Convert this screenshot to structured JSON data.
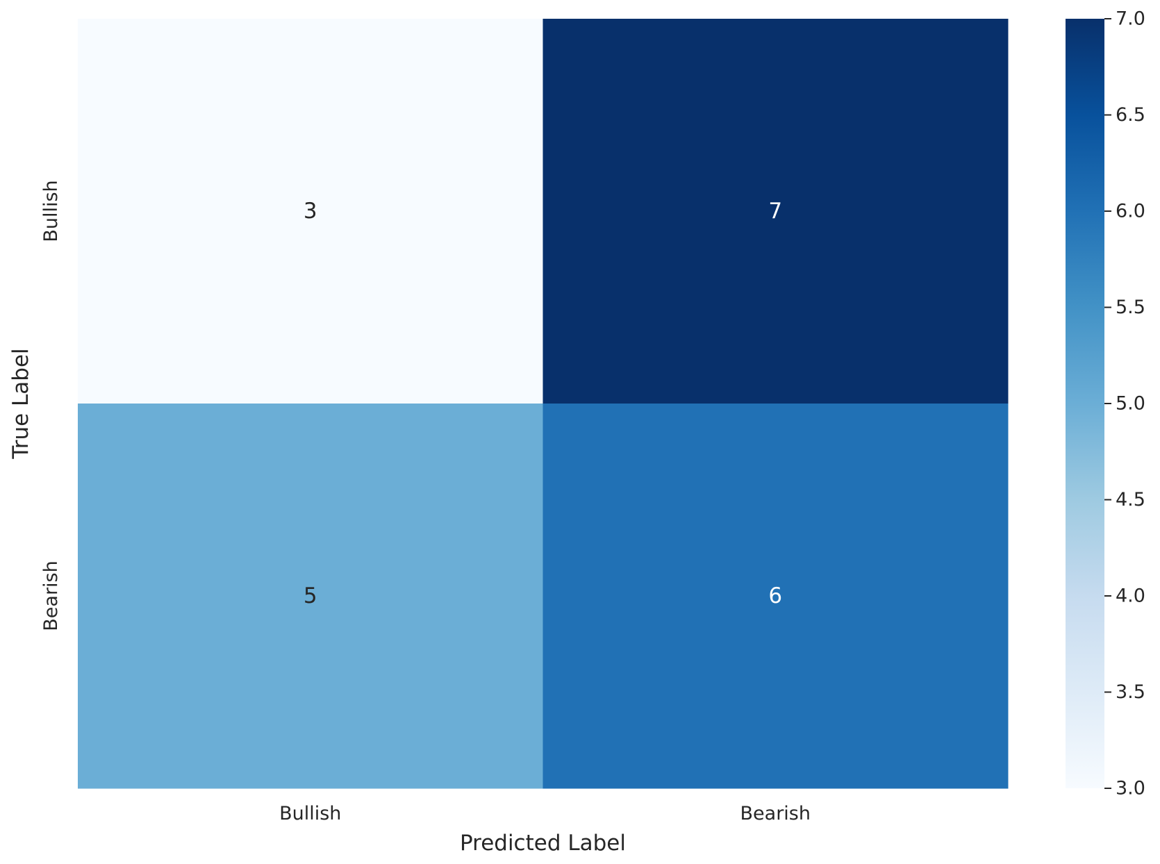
{
  "chart_data": {
    "type": "heatmap",
    "title": "",
    "xlabel": "Predicted Label",
    "ylabel": "True Label",
    "x_categories": [
      "Bullish",
      "Bearish"
    ],
    "y_categories": [
      "Bullish",
      "Bearish"
    ],
    "values": [
      [
        3,
        7
      ],
      [
        5,
        6
      ]
    ],
    "annotations_shown": true,
    "colormap": "Blues",
    "colorbar": {
      "range": [
        3.0,
        7.0
      ],
      "ticks": [
        3.0,
        3.5,
        4.0,
        4.5,
        5.0,
        5.5,
        6.0,
        6.5,
        7.0
      ],
      "tick_labels": [
        "3.0",
        "3.5",
        "4.0",
        "4.5",
        "5.0",
        "5.5",
        "6.0",
        "6.5",
        "7.0"
      ],
      "placement": "right"
    },
    "grid": false,
    "colors": {
      "text_dark": "#262626",
      "text_light": "#ffffff",
      "colormap_stops": [
        "#f7fbff",
        "#deebf7",
        "#c6dbef",
        "#9ecae1",
        "#6baed6",
        "#4292c6",
        "#2171b5",
        "#08519c",
        "#08306b"
      ]
    }
  }
}
